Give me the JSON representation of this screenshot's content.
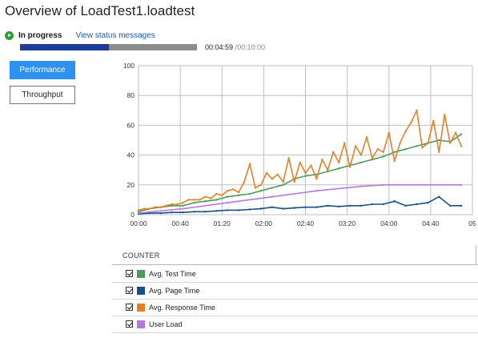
{
  "header": {
    "title": "Overview of LoadTest1.loadtest"
  },
  "status": {
    "state": "In progress",
    "link": "View status messages",
    "elapsed": "00:04:59",
    "total": "/00:10:00",
    "progress": 0.5
  },
  "buttons": {
    "performance": "Performance",
    "throughput": "Throughput"
  },
  "counters": {
    "header": "COUNTER",
    "items": [
      {
        "label": "Avg. Test Time",
        "color": "#4e9a5e",
        "checked": true
      },
      {
        "label": "Avg. Page Time",
        "color": "#1c4f82",
        "checked": true
      },
      {
        "label": "Avg. Response Time",
        "color": "#e0822a",
        "checked": true
      },
      {
        "label": "User Load",
        "color": "#b57ad8",
        "checked": true
      }
    ]
  },
  "chart_data": {
    "type": "line",
    "x_ticks": [
      "00:00",
      "00:40",
      "01:20",
      "02:00",
      "02:40",
      "03:20",
      "04:00",
      "04:40",
      "05"
    ],
    "y_ticks": [
      "0",
      "20",
      "40",
      "60",
      "80",
      "100"
    ],
    "ylim": [
      0,
      100
    ],
    "xlim_seconds": [
      0,
      300
    ],
    "grid": true,
    "series": [
      {
        "name": "Avg. Test Time",
        "color": "#4e9a5e",
        "x": [
          0,
          10,
          20,
          30,
          40,
          50,
          60,
          70,
          80,
          90,
          100,
          110,
          120,
          130,
          140,
          150,
          160,
          170,
          180,
          190,
          200,
          210,
          220,
          230,
          240,
          250,
          260,
          270,
          280,
          290
        ],
        "y": [
          2,
          4,
          5,
          6,
          6,
          8,
          9,
          10,
          12,
          13,
          14,
          16,
          18,
          20,
          24,
          26,
          27,
          29,
          31,
          33,
          35,
          37,
          39,
          42,
          44,
          46,
          48,
          50,
          49,
          54
        ]
      },
      {
        "name": "Avg. Page Time",
        "color": "#1c4f82",
        "x": [
          0,
          10,
          20,
          30,
          40,
          50,
          60,
          70,
          80,
          90,
          100,
          110,
          120,
          130,
          140,
          150,
          160,
          170,
          180,
          190,
          200,
          210,
          220,
          230,
          240,
          250,
          260,
          270,
          280,
          290
        ],
        "y": [
          0.5,
          1,
          1,
          1.5,
          1.5,
          2,
          2,
          2.5,
          3,
          3,
          3.5,
          4,
          5,
          4,
          4.5,
          5,
          5,
          6,
          5.5,
          6,
          6,
          7,
          7,
          9,
          6,
          7,
          8,
          12,
          6,
          6
        ]
      },
      {
        "name": "Avg. Response Time",
        "color": "#e0822a",
        "x": [
          0,
          5,
          10,
          15,
          20,
          25,
          30,
          35,
          40,
          45,
          50,
          55,
          60,
          65,
          70,
          75,
          80,
          85,
          90,
          95,
          100,
          105,
          110,
          115,
          120,
          125,
          130,
          135,
          140,
          145,
          150,
          155,
          160,
          165,
          170,
          175,
          180,
          185,
          190,
          195,
          200,
          205,
          210,
          215,
          220,
          225,
          230,
          235,
          240,
          245,
          250,
          255,
          260,
          265,
          270,
          275,
          280,
          285,
          290
        ],
        "y": [
          3,
          4,
          4,
          5,
          5,
          6,
          7,
          7,
          8,
          10,
          10,
          10,
          12,
          11,
          14,
          13,
          16,
          17,
          15,
          22,
          34,
          18,
          20,
          28,
          24,
          27,
          22,
          38,
          22,
          35,
          28,
          33,
          24,
          37,
          30,
          42,
          35,
          48,
          32,
          46,
          40,
          52,
          38,
          44,
          42,
          55,
          36,
          48,
          56,
          62,
          70,
          45,
          48,
          63,
          42,
          67,
          48,
          55,
          46
        ]
      },
      {
        "name": "User Load",
        "color": "#b57ad8",
        "x": [
          0,
          40,
          80,
          120,
          160,
          200,
          220,
          290
        ],
        "y": [
          1,
          4,
          8,
          12,
          16,
          19,
          20,
          20
        ]
      }
    ]
  }
}
